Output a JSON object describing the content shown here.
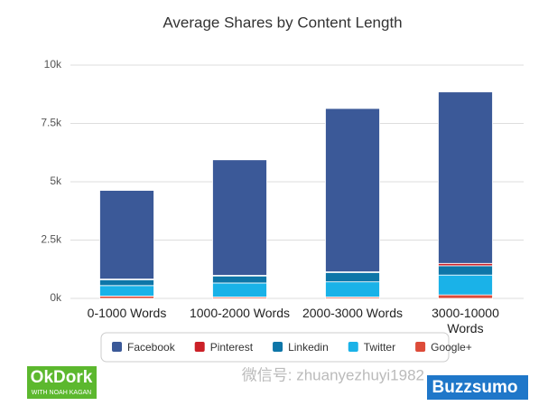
{
  "chart_data": {
    "type": "stacked_bar",
    "title": "Average Shares by Content Length",
    "categories": [
      "0-1000 Words",
      "1000-2000 Words",
      "2000-3000 Words",
      "3000-10000 Words"
    ],
    "series": [
      {
        "name": "Facebook",
        "color": "#3b5998",
        "values": [
          3800,
          4950,
          7000,
          7350
        ]
      },
      {
        "name": "Pinterest",
        "color": "#cb2027",
        "values": [
          30,
          30,
          30,
          100
        ]
      },
      {
        "name": "Linkedin",
        "color": "#0e76a8",
        "values": [
          250,
          300,
          400,
          400
        ]
      },
      {
        "name": "Twitter",
        "color": "#1ab2e8",
        "values": [
          450,
          600,
          650,
          850
        ]
      },
      {
        "name": "Google+",
        "color": "#dd4b39",
        "values": [
          100,
          60,
          60,
          150
        ]
      }
    ],
    "ylim": [
      0,
      10000
    ],
    "yticks": [
      {
        "value": 0,
        "label": "0k"
      },
      {
        "value": 2500,
        "label": "2.5k"
      },
      {
        "value": 5000,
        "label": "5k"
      },
      {
        "value": 7500,
        "label": "7.5k"
      },
      {
        "value": 10000,
        "label": "10k"
      }
    ],
    "grid": true
  },
  "logos": {
    "left": "OkDork",
    "left_sub": "WITH NOAH KAGAN",
    "right": "Buzzsumo"
  },
  "watermark": "微信号: zhuanyezhuyi1982"
}
